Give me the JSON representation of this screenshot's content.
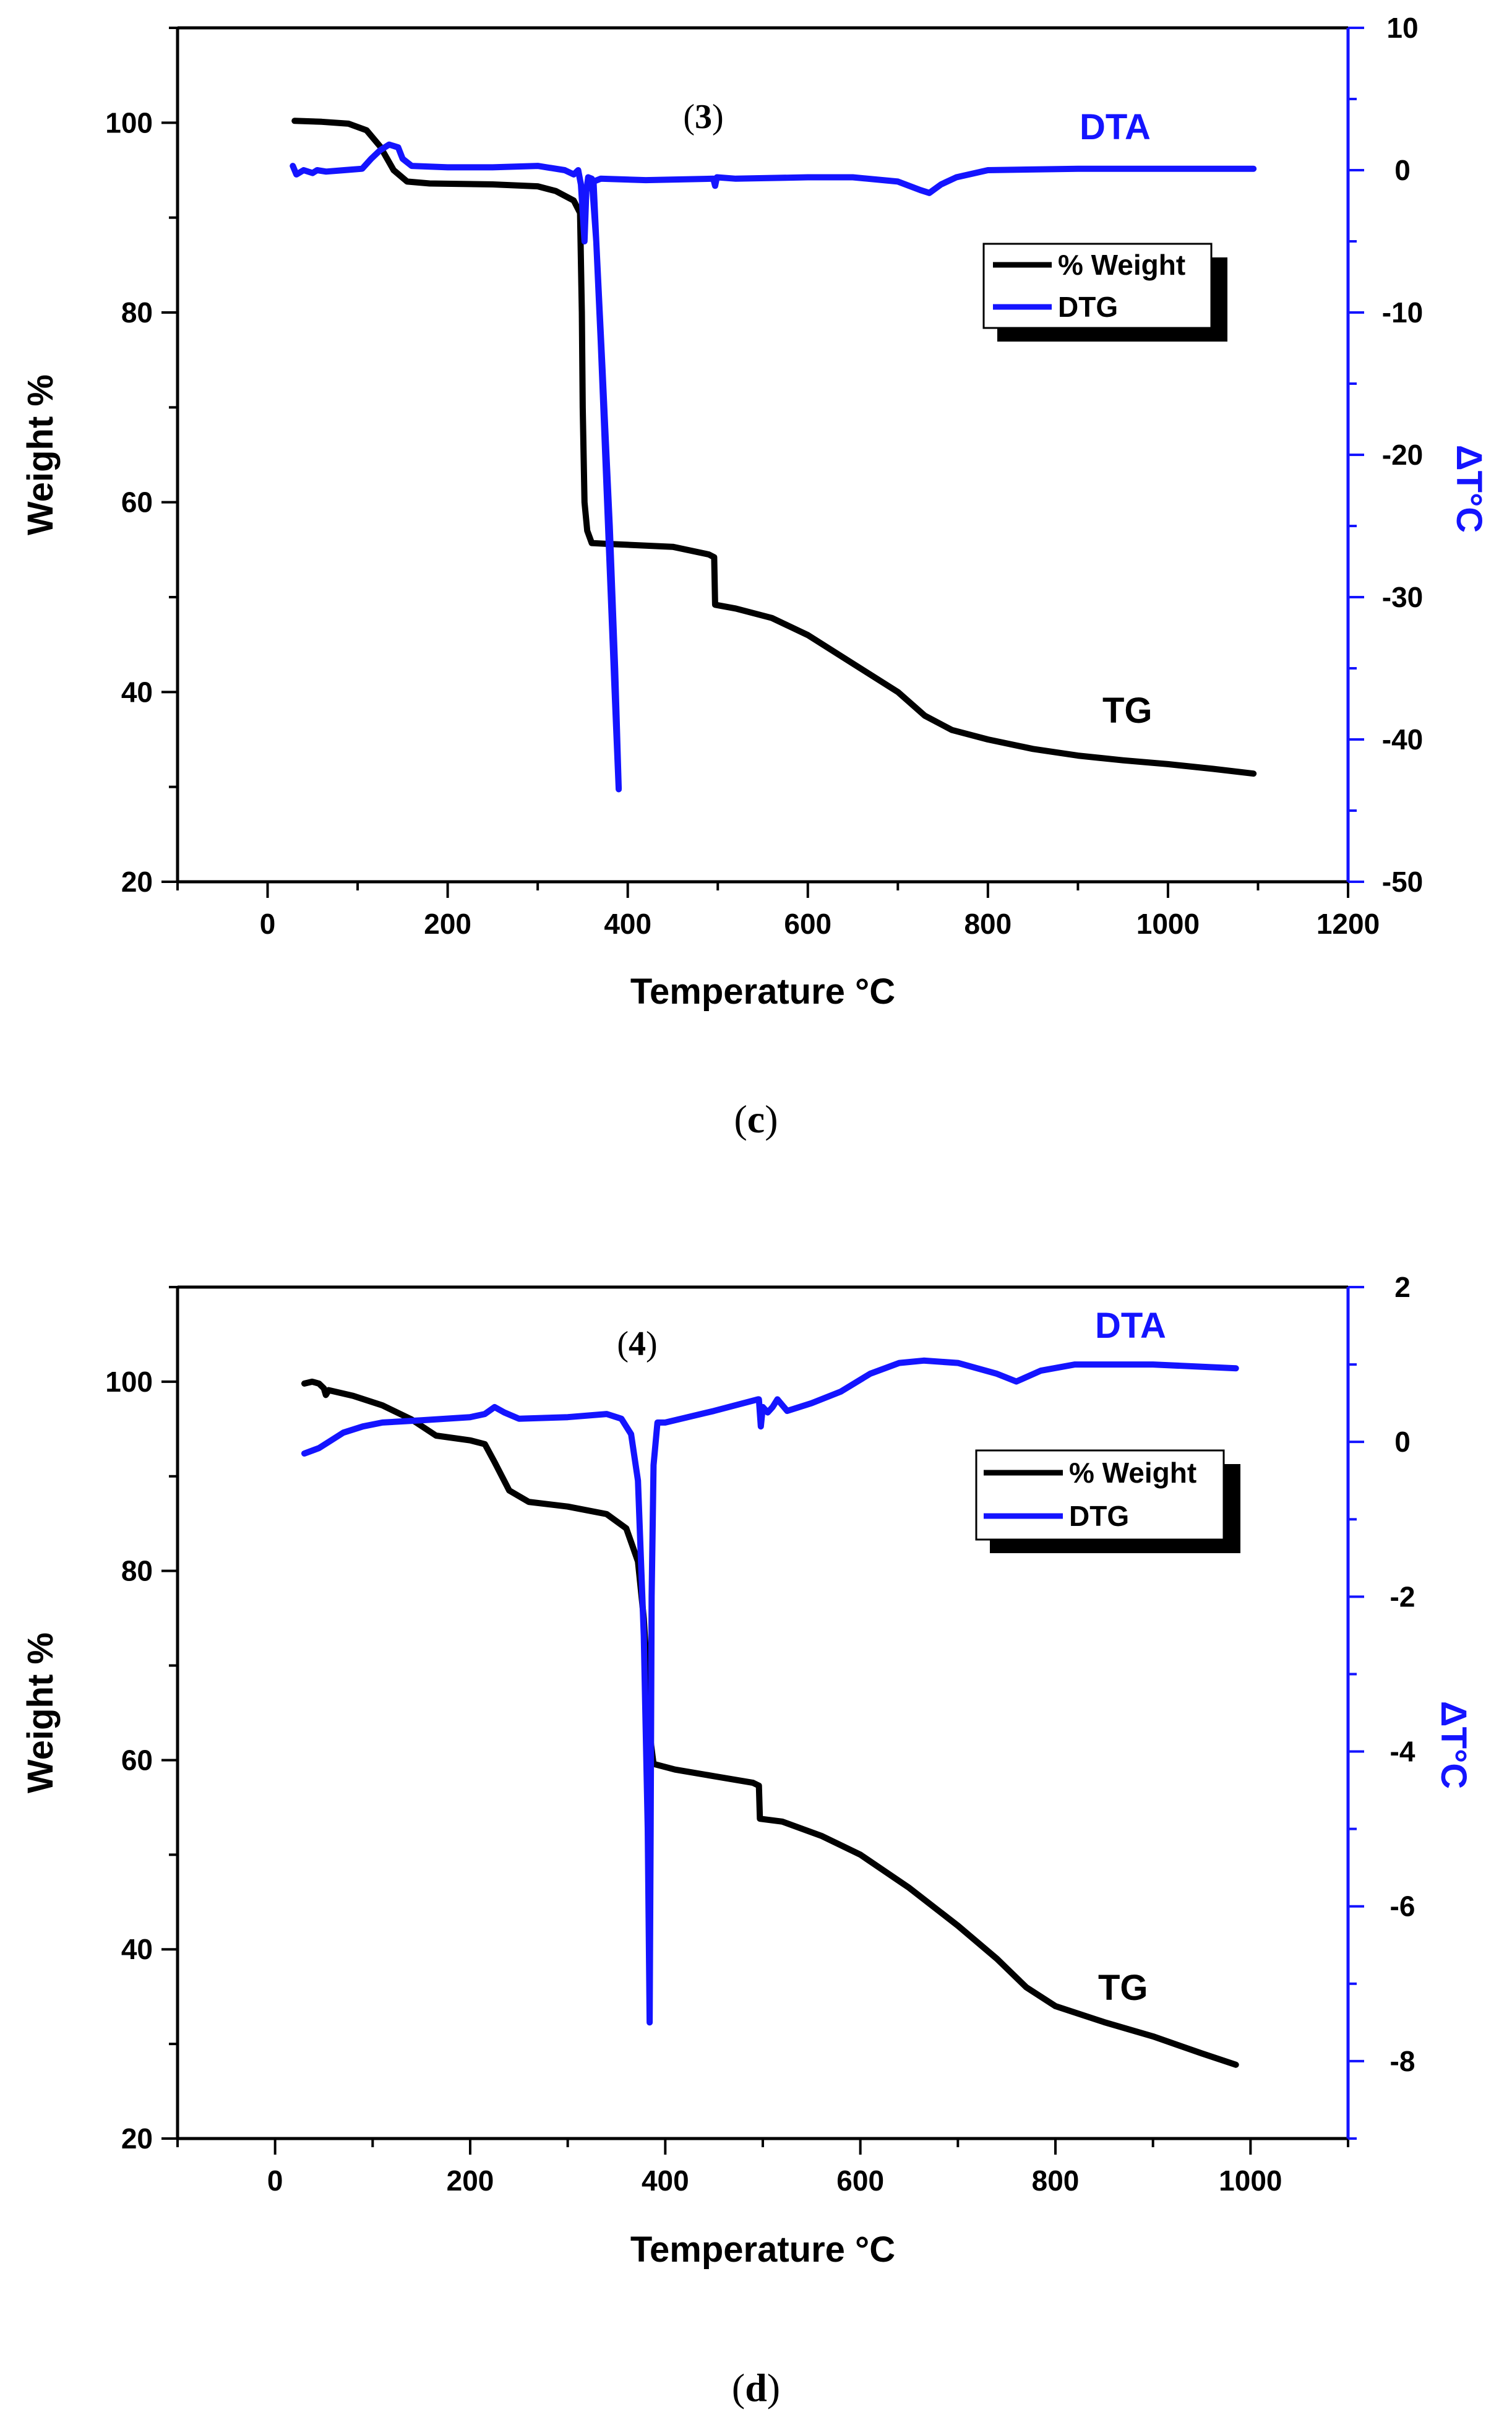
{
  "colors": {
    "tg": "#000000",
    "dta": "#1414ff",
    "axis_left": "#000000",
    "axis_right": "#1414ff"
  },
  "chart_data": [
    {
      "type": "line",
      "panel": "c",
      "panel_label": "c",
      "sample_label": "3",
      "xlabel": "Temperature °C",
      "ylabel": "Weight %",
      "y2label": "ΔT°C",
      "xlim": [
        -100,
        1200
      ],
      "ylim": [
        20,
        110
      ],
      "y2lim": [
        -50,
        10
      ],
      "x_ticks": [
        0,
        200,
        400,
        600,
        800,
        1000,
        1200
      ],
      "y_ticks": [
        20,
        40,
        60,
        80,
        100
      ],
      "y2_ticks": [
        10,
        0,
        -10,
        -20,
        -30,
        -40,
        -50
      ],
      "legend": {
        "position": "top-right",
        "entries": [
          "% Weight",
          "DTG"
        ]
      },
      "annotations": {
        "dta": "DTA",
        "tg": "TG"
      },
      "series": [
        {
          "name": "% Weight",
          "axis": "left",
          "points": [
            [
              30,
              100.2
            ],
            [
              60,
              100.1
            ],
            [
              90,
              99.9
            ],
            [
              110,
              99.2
            ],
            [
              125,
              97.5
            ],
            [
              140,
              95
            ],
            [
              155,
              93.8
            ],
            [
              180,
              93.6
            ],
            [
              250,
              93.5
            ],
            [
              300,
              93.3
            ],
            [
              320,
              92.8
            ],
            [
              340,
              91.8
            ],
            [
              347,
              90.5
            ],
            [
              349,
              80
            ],
            [
              350,
              70
            ],
            [
              352,
              60
            ],
            [
              355,
              57
            ],
            [
              360,
              55.7
            ],
            [
              380,
              55.6
            ],
            [
              450,
              55.3
            ],
            [
              490,
              54.5
            ],
            [
              496,
              54.2
            ],
            [
              497,
              49.2
            ],
            [
              520,
              48.8
            ],
            [
              560,
              47.8
            ],
            [
              600,
              46
            ],
            [
              650,
              43
            ],
            [
              700,
              40
            ],
            [
              730,
              37.5
            ],
            [
              760,
              36
            ],
            [
              800,
              35
            ],
            [
              850,
              34
            ],
            [
              900,
              33.3
            ],
            [
              950,
              32.8
            ],
            [
              1000,
              32.4
            ],
            [
              1050,
              31.9
            ],
            [
              1095,
              31.4
            ]
          ]
        },
        {
          "name": "DTG",
          "axis": "right",
          "points": [
            [
              28,
              0.3
            ],
            [
              32,
              -0.3
            ],
            [
              40,
              0
            ],
            [
              50,
              -0.2
            ],
            [
              55,
              0
            ],
            [
              65,
              -0.1
            ],
            [
              85,
              0
            ],
            [
              105,
              0.1
            ],
            [
              115,
              0.8
            ],
            [
              125,
              1.4
            ],
            [
              135,
              1.8
            ],
            [
              145,
              1.6
            ],
            [
              150,
              0.8
            ],
            [
              160,
              0.3
            ],
            [
              200,
              0.2
            ],
            [
              250,
              0.2
            ],
            [
              300,
              0.3
            ],
            [
              330,
              0
            ],
            [
              340,
              -0.3
            ],
            [
              345,
              0
            ],
            [
              348,
              -1
            ],
            [
              350,
              -3
            ],
            [
              352,
              -5
            ],
            [
              354,
              -1.5
            ],
            [
              356,
              -0.5
            ],
            [
              360,
              -0.6
            ],
            [
              365,
              -5
            ],
            [
              370,
              -12
            ],
            [
              375,
              -20
            ],
            [
              380,
              -28
            ],
            [
              385,
              -36
            ],
            [
              390,
              -43.5
            ],
            [
              386,
              -35
            ],
            [
              380,
              -25
            ],
            [
              372,
              -14
            ],
            [
              365,
              -5
            ],
            [
              362,
              -0.8
            ],
            [
              370,
              -0.6
            ],
            [
              420,
              -0.7
            ],
            [
              495,
              -0.6
            ],
            [
              497,
              -1.1
            ],
            [
              499,
              -0.5
            ],
            [
              520,
              -0.6
            ],
            [
              600,
              -0.5
            ],
            [
              650,
              -0.5
            ],
            [
              700,
              -0.8
            ],
            [
              725,
              -1.4
            ],
            [
              735,
              -1.6
            ],
            [
              748,
              -1.0
            ],
            [
              765,
              -0.5
            ],
            [
              800,
              0
            ],
            [
              900,
              0.1
            ],
            [
              1000,
              0.1
            ],
            [
              1095,
              0.1
            ]
          ]
        }
      ]
    },
    {
      "type": "line",
      "panel": "d",
      "panel_label": "d",
      "sample_label": "4",
      "xlabel": "Temperature °C",
      "ylabel": "Weight %",
      "y2label": "ΔT°C",
      "xlim": [
        -100,
        1100
      ],
      "ylim": [
        20,
        110
      ],
      "y2lim": [
        -9,
        2
      ],
      "x_ticks": [
        0,
        200,
        400,
        600,
        800,
        1000
      ],
      "y_ticks": [
        20,
        40,
        60,
        80,
        100
      ],
      "y2_ticks": [
        2,
        0,
        -2,
        -4,
        -6,
        -8
      ],
      "legend": {
        "position": "top-right",
        "entries": [
          "% Weight",
          "DTG"
        ]
      },
      "annotations": {
        "dta": "DTA",
        "tg": "TG"
      },
      "series": [
        {
          "name": "% Weight",
          "axis": "left",
          "points": [
            [
              30,
              99.8
            ],
            [
              38,
              100
            ],
            [
              45,
              99.8
            ],
            [
              50,
              99.3
            ],
            [
              52,
              98.6
            ],
            [
              55,
              99.1
            ],
            [
              80,
              98.5
            ],
            [
              110,
              97.5
            ],
            [
              140,
              96
            ],
            [
              165,
              94.3
            ],
            [
              200,
              93.8
            ],
            [
              215,
              93.4
            ],
            [
              225,
              91.5
            ],
            [
              240,
              88.5
            ],
            [
              260,
              87.3
            ],
            [
              300,
              86.8
            ],
            [
              340,
              86
            ],
            [
              360,
              84.5
            ],
            [
              372,
              81
            ],
            [
              378,
              75
            ],
            [
              382,
              68
            ],
            [
              385,
              62
            ],
            [
              388,
              59.6
            ],
            [
              410,
              59
            ],
            [
              450,
              58.3
            ],
            [
              490,
              57.6
            ],
            [
              496,
              57.3
            ],
            [
              497,
              53.8
            ],
            [
              520,
              53.5
            ],
            [
              560,
              52
            ],
            [
              600,
              50
            ],
            [
              650,
              46.5
            ],
            [
              700,
              42.5
            ],
            [
              740,
              39
            ],
            [
              770,
              36
            ],
            [
              800,
              34
            ],
            [
              850,
              32.3
            ],
            [
              900,
              30.8
            ],
            [
              950,
              29
            ],
            [
              985,
              27.8
            ]
          ]
        },
        {
          "name": "DTG",
          "axis": "right",
          "points": [
            [
              30,
              -0.15
            ],
            [
              45,
              -0.08
            ],
            [
              55,
              0
            ],
            [
              70,
              0.12
            ],
            [
              90,
              0.2
            ],
            [
              110,
              0.25
            ],
            [
              150,
              0.28
            ],
            [
              200,
              0.32
            ],
            [
              215,
              0.36
            ],
            [
              225,
              0.45
            ],
            [
              235,
              0.38
            ],
            [
              250,
              0.3
            ],
            [
              300,
              0.32
            ],
            [
              340,
              0.36
            ],
            [
              355,
              0.3
            ],
            [
              365,
              0.1
            ],
            [
              372,
              -0.5
            ],
            [
              378,
              -2.5
            ],
            [
              382,
              -5
            ],
            [
              384,
              -7.5
            ],
            [
              385,
              -5
            ],
            [
              386,
              -2
            ],
            [
              388,
              -0.3
            ],
            [
              392,
              0.25
            ],
            [
              400,
              0.25
            ],
            [
              450,
              0.4
            ],
            [
              495,
              0.55
            ],
            [
              496,
              0.55
            ],
            [
              498,
              0.2
            ],
            [
              500,
              0.45
            ],
            [
              505,
              0.38
            ],
            [
              510,
              0.45
            ],
            [
              515,
              0.55
            ],
            [
              525,
              0.4
            ],
            [
              550,
              0.5
            ],
            [
              580,
              0.65
            ],
            [
              610,
              0.88
            ],
            [
              640,
              1.02
            ],
            [
              665,
              1.05
            ],
            [
              700,
              1.02
            ],
            [
              740,
              0.88
            ],
            [
              760,
              0.78
            ],
            [
              785,
              0.92
            ],
            [
              820,
              1
            ],
            [
              900,
              1
            ],
            [
              985,
              0.95
            ]
          ]
        }
      ]
    }
  ]
}
